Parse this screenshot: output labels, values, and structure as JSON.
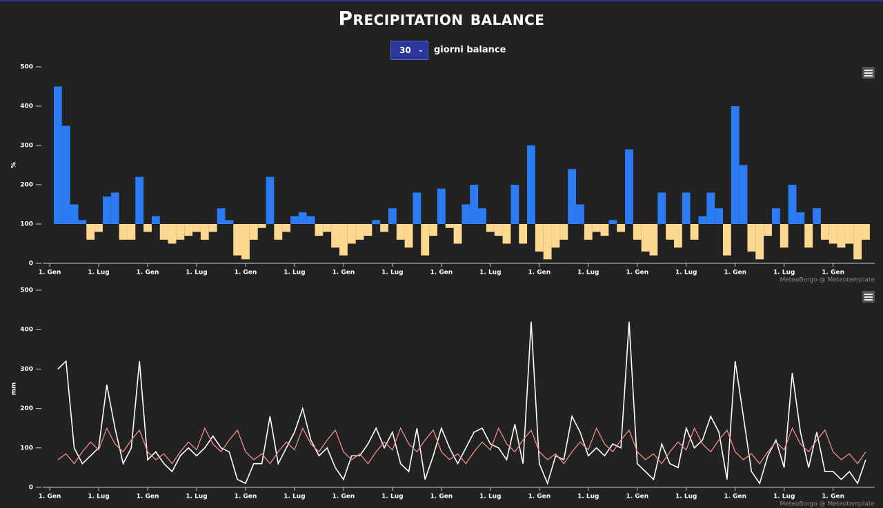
{
  "title": "Precipitation balance",
  "controls": {
    "select_value": "30",
    "select_label": "giorni balance"
  },
  "chart_data": [
    {
      "type": "bar",
      "y_label": "%",
      "credits": "MeteoBorgo @ Meteotemplate",
      "threshold": 100,
      "color_above": "#2a7bf4",
      "color_below": "#fdd88f",
      "xlim": [
        -0.85,
        101.1
      ],
      "xticks": [
        {
          "value": 0,
          "label": "1. Gen"
        },
        {
          "value": 6,
          "label": "1. Lug"
        },
        {
          "value": 12,
          "label": "1. Gen"
        },
        {
          "value": 18,
          "label": "1. Lug"
        },
        {
          "value": 24,
          "label": "1. Gen"
        },
        {
          "value": 30,
          "label": "1. Lug"
        },
        {
          "value": 36,
          "label": "1. Gen"
        },
        {
          "value": 42,
          "label": "1. Lug"
        },
        {
          "value": 48,
          "label": "1. Gen"
        },
        {
          "value": 54,
          "label": "1. Lug"
        },
        {
          "value": 60,
          "label": "1. Gen"
        },
        {
          "value": 66,
          "label": "1. Lug"
        },
        {
          "value": 72,
          "label": "1. Gen"
        },
        {
          "value": 78,
          "label": "1. Lug"
        },
        {
          "value": 84,
          "label": "1. Gen"
        },
        {
          "value": 90,
          "label": "1. Lug"
        },
        {
          "value": 96,
          "label": "1. Gen"
        }
      ],
      "ylim": [
        0,
        500
      ],
      "yticks": [
        0,
        100,
        200,
        300,
        400,
        500
      ],
      "x": [
        1,
        2,
        3,
        4,
        5,
        6,
        7,
        8,
        9,
        10,
        11,
        12,
        13,
        14,
        15,
        16,
        17,
        18,
        19,
        20,
        21,
        22,
        23,
        24,
        25,
        26,
        27,
        28,
        29,
        30,
        31,
        32,
        33,
        34,
        35,
        36,
        37,
        38,
        39,
        40,
        41,
        42,
        43,
        44,
        45,
        46,
        47,
        48,
        49,
        50,
        51,
        52,
        53,
        54,
        55,
        56,
        57,
        58,
        59,
        60,
        61,
        62,
        63,
        64,
        65,
        66,
        67,
        68,
        69,
        70,
        71,
        72,
        73,
        74,
        75,
        76,
        77,
        78,
        79,
        80,
        81,
        82,
        83,
        84,
        85,
        86,
        87,
        88,
        89,
        90,
        91,
        92,
        93,
        94,
        95,
        96,
        97,
        98,
        99,
        100
      ],
      "values": [
        450,
        350,
        150,
        110,
        60,
        80,
        170,
        180,
        60,
        60,
        220,
        80,
        120,
        60,
        50,
        60,
        70,
        80,
        60,
        80,
        140,
        110,
        20,
        10,
        60,
        90,
        220,
        60,
        80,
        120,
        130,
        120,
        70,
        80,
        40,
        20,
        50,
        60,
        70,
        110,
        80,
        140,
        60,
        40,
        180,
        20,
        70,
        190,
        90,
        50,
        150,
        200,
        140,
        80,
        70,
        50,
        200,
        50,
        300,
        30,
        10,
        40,
        60,
        240,
        150,
        60,
        80,
        70,
        110,
        80,
        290,
        60,
        30,
        20,
        180,
        60,
        40,
        180,
        60,
        120,
        180,
        140,
        20,
        400,
        250,
        30,
        10,
        70,
        140,
        40,
        200,
        130,
        40,
        140,
        60,
        50,
        40,
        50,
        10,
        60
      ]
    },
    {
      "type": "line",
      "y_label": "mm",
      "credits": "MeteoBorgo @ Meteotemplate",
      "xlim": [
        -0.85,
        101.1
      ],
      "xticks": [
        {
          "value": 0,
          "label": "1. Gen"
        },
        {
          "value": 6,
          "label": "1. Lug"
        },
        {
          "value": 12,
          "label": "1. Gen"
        },
        {
          "value": 18,
          "label": "1. Lug"
        },
        {
          "value": 24,
          "label": "1. Gen"
        },
        {
          "value": 30,
          "label": "1. Lug"
        },
        {
          "value": 36,
          "label": "1. Gen"
        },
        {
          "value": 42,
          "label": "1. Lug"
        },
        {
          "value": 48,
          "label": "1. Gen"
        },
        {
          "value": 54,
          "label": "1. Lug"
        },
        {
          "value": 60,
          "label": "1. Gen"
        },
        {
          "value": 66,
          "label": "1. Lug"
        },
        {
          "value": 72,
          "label": "1. Gen"
        },
        {
          "value": 78,
          "label": "1. Lug"
        },
        {
          "value": 84,
          "label": "1. Gen"
        },
        {
          "value": 90,
          "label": "1. Lug"
        },
        {
          "value": 96,
          "label": "1. Gen"
        }
      ],
      "ylim": [
        0,
        500
      ],
      "yticks": [
        0,
        100,
        200,
        300,
        400,
        500
      ],
      "x": [
        1,
        2,
        3,
        4,
        5,
        6,
        7,
        8,
        9,
        10,
        11,
        12,
        13,
        14,
        15,
        16,
        17,
        18,
        19,
        20,
        21,
        22,
        23,
        24,
        25,
        26,
        27,
        28,
        29,
        30,
        31,
        32,
        33,
        34,
        35,
        36,
        37,
        38,
        39,
        40,
        41,
        42,
        43,
        44,
        45,
        46,
        47,
        48,
        49,
        50,
        51,
        52,
        53,
        54,
        55,
        56,
        57,
        58,
        59,
        60,
        61,
        62,
        63,
        64,
        65,
        66,
        67,
        68,
        69,
        70,
        71,
        72,
        73,
        74,
        75,
        76,
        77,
        78,
        79,
        80,
        81,
        82,
        83,
        84,
        85,
        86,
        87,
        88,
        89,
        90,
        91,
        92,
        93,
        94,
        95,
        96,
        97,
        98,
        99,
        100
      ],
      "series": [
        {
          "color": "#ffffff",
          "values": [
            300,
            320,
            100,
            60,
            80,
            100,
            260,
            150,
            60,
            100,
            320,
            70,
            90,
            60,
            40,
            80,
            100,
            80,
            100,
            130,
            100,
            90,
            20,
            10,
            60,
            60,
            180,
            60,
            100,
            140,
            200,
            120,
            80,
            100,
            50,
            20,
            80,
            80,
            110,
            150,
            100,
            140,
            60,
            40,
            150,
            20,
            80,
            150,
            100,
            60,
            100,
            140,
            150,
            110,
            100,
            70,
            160,
            60,
            420,
            60,
            10,
            80,
            70,
            180,
            140,
            80,
            100,
            80,
            110,
            100,
            420,
            60,
            40,
            20,
            110,
            60,
            50,
            150,
            100,
            120,
            180,
            140,
            20,
            320,
            180,
            40,
            10,
            80,
            120,
            50,
            290,
            140,
            50,
            140,
            40,
            40,
            20,
            40,
            10,
            70
          ]
        },
        {
          "color": "#f08c8c",
          "values": [
            70,
            85,
            60,
            90,
            115,
            95,
            150,
            110,
            90,
            120,
            145,
            90,
            70,
            85,
            60,
            90,
            115,
            95,
            150,
            110,
            90,
            120,
            145,
            90,
            70,
            85,
            60,
            90,
            115,
            95,
            150,
            110,
            90,
            120,
            145,
            90,
            70,
            85,
            60,
            90,
            115,
            95,
            150,
            110,
            90,
            120,
            145,
            90,
            70,
            85,
            60,
            90,
            115,
            95,
            150,
            110,
            90,
            120,
            145,
            90,
            70,
            85,
            60,
            90,
            115,
            95,
            150,
            110,
            90,
            120,
            145,
            90,
            70,
            85,
            60,
            90,
            115,
            95,
            150,
            110,
            90,
            120,
            145,
            90,
            70,
            85,
            60,
            90,
            115,
            95,
            150,
            110,
            90,
            120,
            145,
            90,
            70,
            85,
            60,
            90
          ]
        }
      ]
    }
  ]
}
